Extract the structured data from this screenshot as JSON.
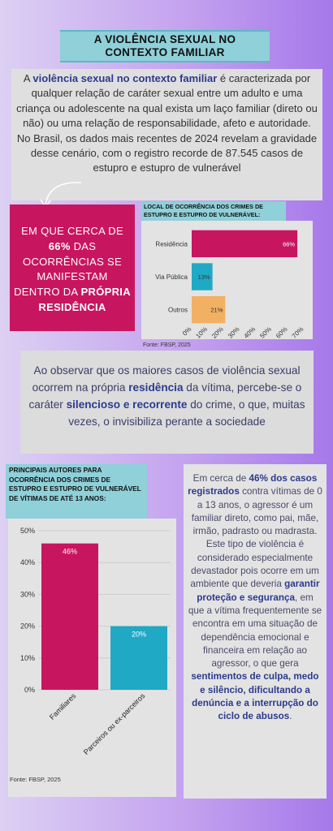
{
  "title": {
    "line1": "A VIOLÊNCIA SEXUAL NO",
    "line2": "CONTEXTO FAMILIAR"
  },
  "intro": {
    "t1": "A ",
    "b1": "violência sexual no contexto familiar",
    "t2": " é caracterizada por qualquer relação de caráter sexual entre um adulto e uma criança ou adolescente na qual exista um laço familiar (direto ou não) ou uma relação de responsabilidade, afeto e autoridade. No Brasil, os dados mais recentes de 2024 revelam a gravidade desse cenário, com o registro recorde de 87.545 casos de estupro e estupro de vulnerável"
  },
  "highlight": {
    "t1": "EM QUE CERCA DE ",
    "b1": "66%",
    "t2": "  DAS OCORRÊNCIAS SE MANIFESTAM DENTRO DA ",
    "b2": "PRÓPRIA RESIDÊNCIA"
  },
  "middle": {
    "t1": "Ao observar que os maiores casos de violência sexual ocorrem na própria ",
    "b1": "residência",
    "t2": " da vítima, percebe-se o caráter ",
    "b2": "silencioso e recorrente",
    "t3": " do crime, o que, muitas vezes, o invisibiliza perante a sociedade"
  },
  "right_text": {
    "t1": "Em cerca de ",
    "b1": "46% dos casos registrados",
    "t2": " contra vítimas de 0 a 13 anos, o agressor é um familiar direto, como pai, mãe, irmão, padrasto ou madrasta. Este tipo de violência é considerado especialmente devastador pois ocorre em um ambiente que deveria ",
    "b2": "garantir proteção e segurança",
    "t3": ", em que a vítima frequentemente se encontra em uma situação de dependência emocional e financeira em relação ao agressor, o que gera ",
    "b3": "sentimentos de culpa, medo e silêncio, dificultando a denúncia e a interrupção do ciclo de abusos",
    "t4": "."
  },
  "colors": {
    "accent_pink": "#c8155f",
    "teal": "#1fa9c4",
    "orange": "#f2b063",
    "title_bg": "#8fd0d9",
    "text_blue": "#2d3a8c"
  },
  "chart_data": [
    {
      "type": "bar",
      "orientation": "horizontal",
      "title": "LOCAL DE OCORRÊNCIA DOS CRIMES DE ESTUPRO E ESTUPRO DE VULNERÁVEL:",
      "categories": [
        "Residência",
        "Via Pública",
        "Outros"
      ],
      "values": [
        66,
        13,
        21
      ],
      "value_labels": [
        "66%",
        "13%",
        "21%"
      ],
      "colors": [
        "#c8155f",
        "#1fa9c4",
        "#f2b063"
      ],
      "ticks": [
        "0%",
        "10%",
        "20%",
        "30%",
        "40%",
        "50%",
        "60%",
        "70%"
      ],
      "xlim": [
        0,
        70
      ],
      "source": "Fonte:  FBSP, 2025"
    },
    {
      "type": "bar",
      "orientation": "vertical",
      "title": "PRINCIPAIS AUTORES PARA OCORRÊNCIA DOS CRIMES DE ESTUPRO E ESTUPRO DE VULNERÁVEL DE VÍTIMAS DE ATÉ 13 ANOS:",
      "categories": [
        "Familiares",
        "Parceiros ou ex-parceiros"
      ],
      "values": [
        46,
        20
      ],
      "value_labels": [
        "46%",
        "20%"
      ],
      "colors": [
        "#c8155f",
        "#1fa9c4"
      ],
      "ticks": [
        "0%",
        "10%",
        "20%",
        "30%",
        "40%",
        "50%"
      ],
      "ylim": [
        0,
        50
      ],
      "grid": true,
      "source": "Fonte:  FBSP, 2025"
    }
  ]
}
